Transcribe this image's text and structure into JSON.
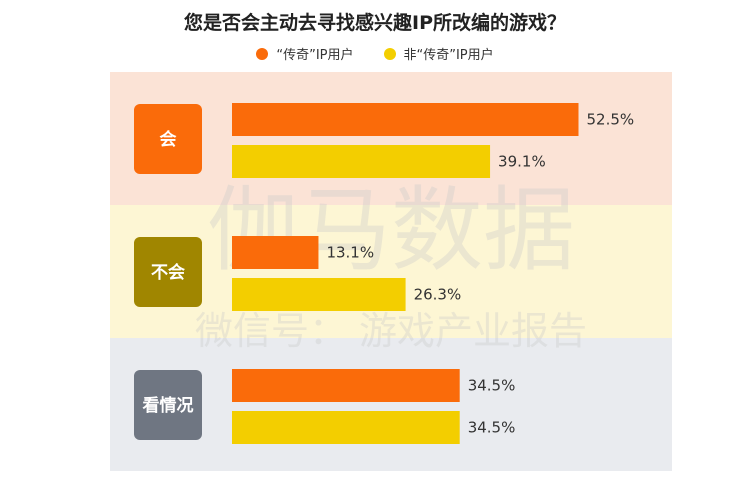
{
  "chart_data": {
    "type": "bar",
    "orientation": "horizontal",
    "title": "您是否会主动去寻找感兴趣IP所改编的游戏？",
    "categories": [
      "会",
      "不会",
      "看情况"
    ],
    "series": [
      {
        "name": "“传奇”IP用户",
        "values": [
          52.5,
          13.1,
          34.5
        ]
      },
      {
        "name": "非“传奇”IP用户",
        "values": [
          39.1,
          26.3,
          34.5
        ]
      }
    ],
    "value_format": "percent_1dp",
    "legend_position": "top",
    "grid": false
  },
  "colors": {
    "series": [
      "#fa6b0a",
      "#f3ce00"
    ],
    "panel_backgrounds": [
      "#fbe3d6",
      "#fdf6d4",
      "#e9ebef"
    ],
    "badges": [
      "#fa6b0a",
      "#a08600",
      "#6f7682"
    ],
    "watermark": "#c8c8c8"
  },
  "watermark": {
    "line1": "伽马数据",
    "line2": "微信号：  游戏产业报告"
  }
}
